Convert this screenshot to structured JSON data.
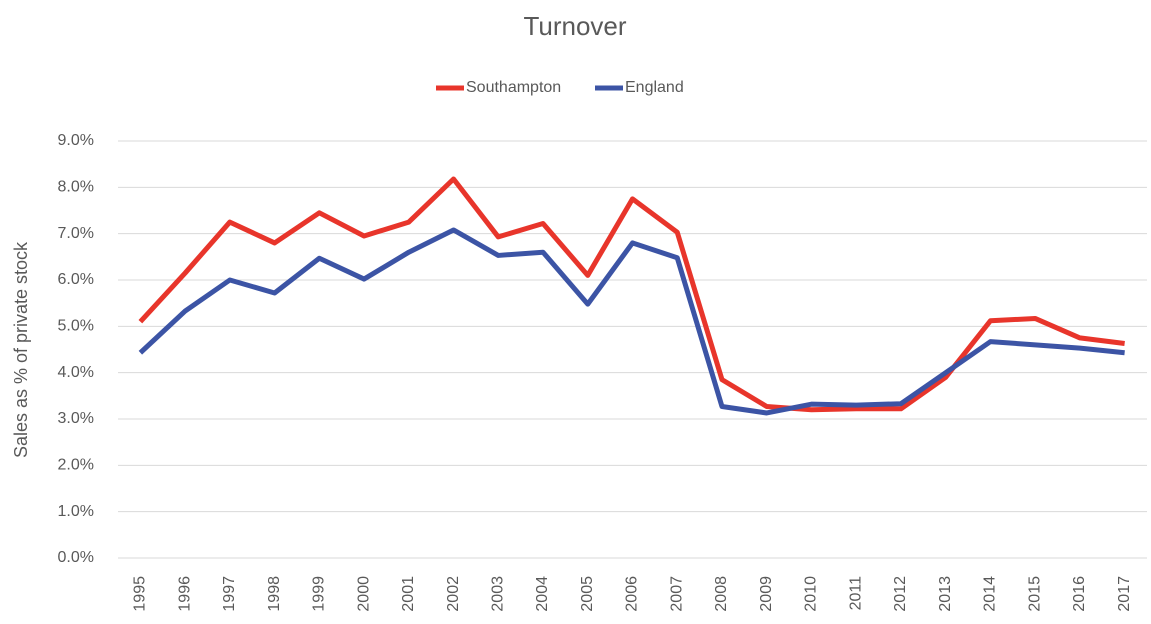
{
  "chart_data": {
    "type": "line",
    "title": "Turnover",
    "y_label": "Sales as % of private stock",
    "categories": [
      "1995",
      "1996",
      "1997",
      "1998",
      "1999",
      "2000",
      "2001",
      "2002",
      "2003",
      "2004",
      "2005",
      "2006",
      "2007",
      "2008",
      "2009",
      "2010",
      "2011",
      "2012",
      "2013",
      "2014",
      "2015",
      "2016",
      "2017"
    ],
    "series": [
      {
        "name": "Southampton",
        "color": "#e8352b",
        "values": [
          5.1,
          6.15,
          7.25,
          6.8,
          7.45,
          6.95,
          7.25,
          8.18,
          6.93,
          7.22,
          6.1,
          7.75,
          7.03,
          3.85,
          3.27,
          3.2,
          3.22,
          3.22,
          3.9,
          5.12,
          5.17,
          4.75,
          4.63
        ]
      },
      {
        "name": "England",
        "color": "#3c54a5",
        "values": [
          4.43,
          5.33,
          6.0,
          5.72,
          6.47,
          6.02,
          6.6,
          7.08,
          6.53,
          6.6,
          5.48,
          6.8,
          6.48,
          3.27,
          3.13,
          3.32,
          3.3,
          3.33,
          4.0,
          4.67,
          4.6,
          4.53,
          4.43
        ]
      }
    ],
    "ylim": [
      0,
      9
    ],
    "yticks": [
      {
        "value": 0,
        "label": "0.0%"
      },
      {
        "value": 1,
        "label": "1.0%"
      },
      {
        "value": 2,
        "label": "2.0%"
      },
      {
        "value": 3,
        "label": "3.0%"
      },
      {
        "value": 4,
        "label": "4.0%"
      },
      {
        "value": 5,
        "label": "5.0%"
      },
      {
        "value": 6,
        "label": "6.0%"
      },
      {
        "value": 7,
        "label": "7.0%"
      },
      {
        "value": 8,
        "label": "8.0%"
      },
      {
        "value": 9,
        "label": "9.0%"
      }
    ],
    "grid": true,
    "legend": "top"
  }
}
